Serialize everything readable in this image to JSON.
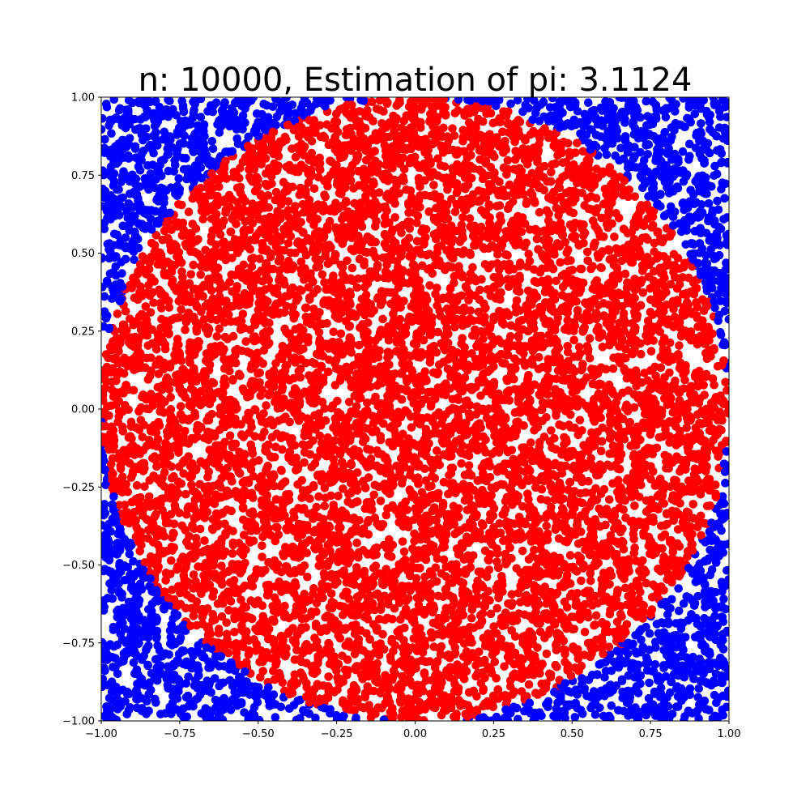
{
  "chart_data": {
    "type": "scatter",
    "title": "n: 10000, Estimation of pi: 3.1124",
    "n": 10000,
    "pi_estimate": 3.1124,
    "xlim": [
      -1.0,
      1.0
    ],
    "ylim": [
      -1.0,
      1.0
    ],
    "x_ticks": [
      -1.0,
      -0.75,
      -0.5,
      -0.25,
      0.0,
      0.25,
      0.5,
      0.75,
      1.0
    ],
    "y_ticks": [
      -1.0,
      -0.75,
      -0.5,
      -0.25,
      0.0,
      0.25,
      0.5,
      0.75,
      1.0
    ],
    "x_tick_labels": [
      "−1.00",
      "−0.75",
      "−0.50",
      "−0.25",
      "0.00",
      "0.25",
      "0.50",
      "0.75",
      "1.00"
    ],
    "y_tick_labels": [
      "−1.00",
      "−0.75",
      "−0.50",
      "−0.25",
      "0.00",
      "0.25",
      "0.50",
      "0.75",
      "1.00"
    ],
    "grid": false,
    "legend": "none",
    "series": [
      {
        "key": "inside",
        "color": "#ff0000",
        "rule": "x^2 + y^2 <= 1"
      },
      {
        "key": "outside",
        "color": "#0000ff",
        "rule": "x^2 + y^2 > 1"
      }
    ]
  }
}
